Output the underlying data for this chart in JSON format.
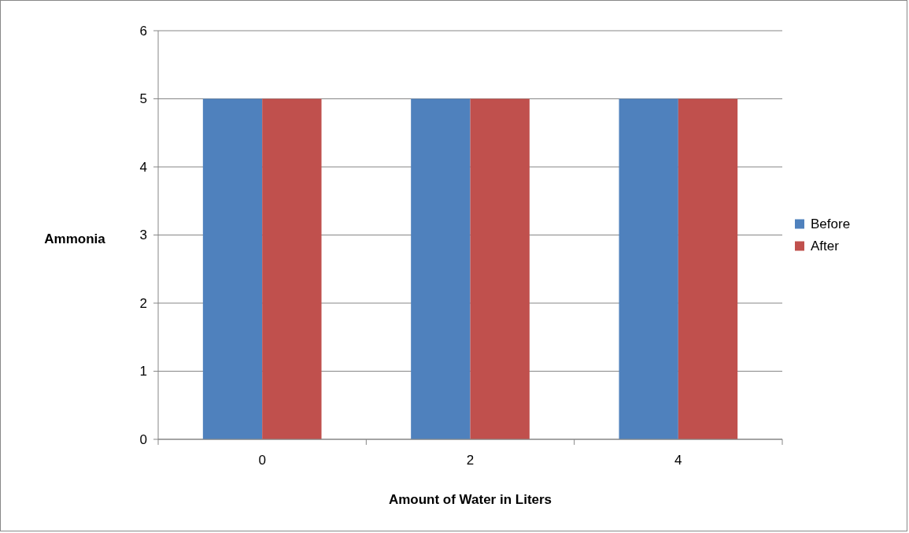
{
  "chart_data": {
    "type": "bar",
    "xlabel": "Amount of Water in Liters",
    "ylabel": "Ammonia",
    "categories": [
      "0",
      "2",
      "4"
    ],
    "series": [
      {
        "name": "Before",
        "color": "#4f81bd",
        "values": [
          5,
          5,
          5
        ]
      },
      {
        "name": "After",
        "color": "#c0504d",
        "values": [
          5,
          5,
          5
        ]
      }
    ],
    "ylim": [
      0,
      6
    ],
    "yticks": [
      0,
      1,
      2,
      3,
      4,
      5,
      6
    ],
    "grid": "y",
    "legend": "right"
  }
}
